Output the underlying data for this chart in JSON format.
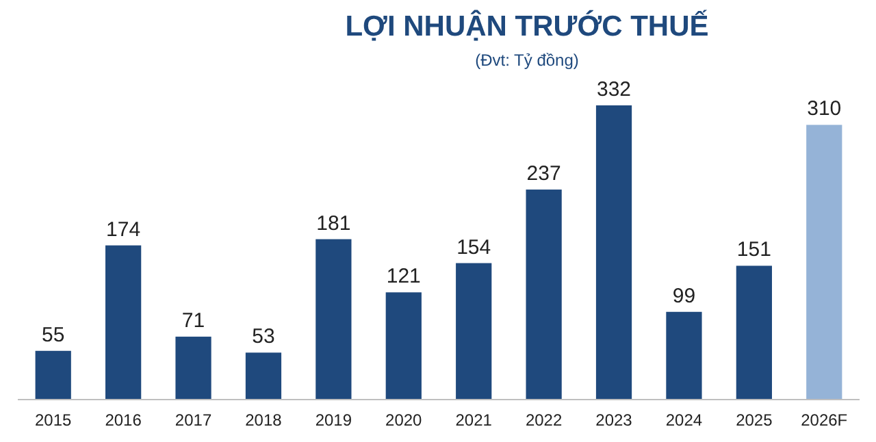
{
  "chart_data": {
    "type": "bar",
    "title": "LỢI NHUẬN TRƯỚC THUẾ",
    "subtitle": "(Đvt: Tỷ đồng)",
    "categories": [
      "2015",
      "2016",
      "2017",
      "2018",
      "2019",
      "2020",
      "2021",
      "2022",
      "2023",
      "2024",
      "2025",
      "2026F"
    ],
    "values": [
      55,
      174,
      71,
      53,
      181,
      121,
      154,
      237,
      332,
      99,
      151,
      310
    ],
    "colors": [
      "#1f497d",
      "#1f497d",
      "#1f497d",
      "#1f497d",
      "#1f497d",
      "#1f497d",
      "#1f497d",
      "#1f497d",
      "#1f497d",
      "#1f497d",
      "#1f497d",
      "#95b3d7"
    ],
    "data_labels": true
  }
}
